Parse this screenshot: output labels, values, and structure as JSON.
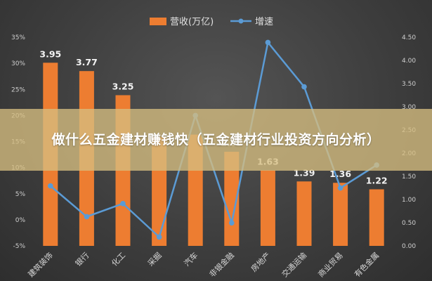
{
  "overlay": {
    "title": "做什么五金建材赚钱快（五金建材行业投资方向分析）"
  },
  "colors": {
    "bar": "#ed7d31",
    "line": "#5b9bd5",
    "overlay": "#d6be80",
    "background": "#444444"
  },
  "chart_data": {
    "type": "bar",
    "categories": [
      "建筑装饰",
      "银行",
      "化工",
      "采掘",
      "汽车",
      "非银金融",
      "房地产",
      "交通运输",
      "商业贸易",
      "有色金属"
    ],
    "series": [
      {
        "name": "营收(万亿)",
        "type": "bar",
        "axis": "right",
        "values": [
          3.95,
          3.77,
          3.25,
          2.35,
          2.4,
          2.03,
          1.63,
          1.39,
          1.36,
          1.22
        ],
        "data_labels": [
          "3.95",
          "3.77",
          "3.25",
          "",
          "",
          "2.03",
          "1.63",
          "1.39",
          "1.36",
          "1.22"
        ]
      },
      {
        "name": "增速",
        "type": "line",
        "axis": "left",
        "values": [
          0.065,
          0.006,
          0.031,
          -0.033,
          0.2,
          -0.006,
          0.34,
          0.255,
          0.061,
          0.105
        ]
      }
    ],
    "y_left": {
      "min": -0.05,
      "max": 0.35,
      "step": 0.05,
      "ticks": [
        "-5%",
        "0%",
        "5%",
        "10%",
        "15%",
        "20%",
        "25%",
        "30%",
        "35%"
      ]
    },
    "y_right": {
      "min": 0,
      "max": 4.5,
      "step": 0.5,
      "ticks": [
        "0.00",
        "0.50",
        "1.00",
        "1.50",
        "2.00",
        "2.50",
        "3.00",
        "3.50",
        "4.00",
        "4.50"
      ]
    },
    "legend_position": "top",
    "grid": false
  }
}
